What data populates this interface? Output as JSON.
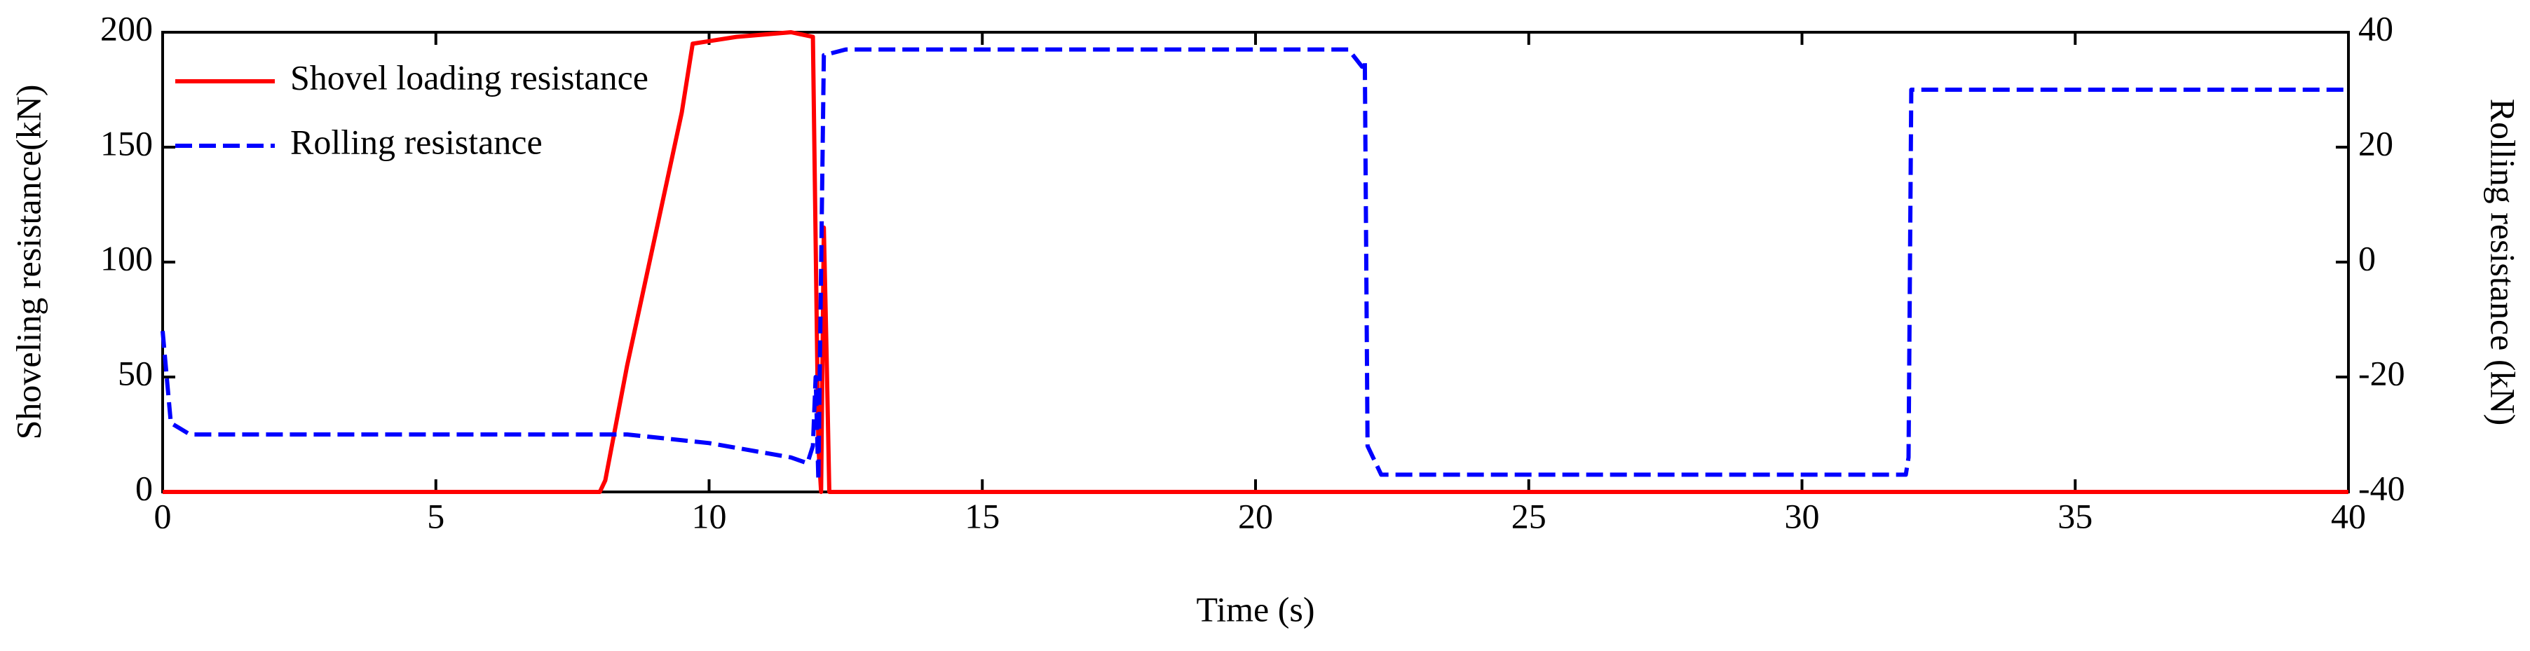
{
  "chart_data": {
    "type": "line",
    "x_label": "Time (s)",
    "y_label": "Shoveling resistance(kN)",
    "y2_label": "Rolling resistance (kN)",
    "xlim": [
      0,
      40
    ],
    "xticks": [
      0,
      5,
      10,
      15,
      20,
      25,
      30,
      35,
      40
    ],
    "ylim": [
      0,
      200
    ],
    "yticks": [
      0,
      50,
      100,
      150,
      200
    ],
    "y2lim": [
      -40,
      40
    ],
    "y2ticks": [
      -40,
      -20,
      0,
      20,
      40
    ],
    "legend": "upper-left",
    "series": [
      {
        "name": "Shovel loading resistance",
        "color": "#ff0000",
        "style": "solid",
        "x": [
          0,
          8,
          8.1,
          8.5,
          9,
          9.5,
          9.7,
          10.5,
          11.5,
          11.9,
          12.0,
          12.05,
          12.1,
          12.15,
          12.2,
          40
        ],
        "values": [
          0,
          0,
          5,
          55,
          110,
          165,
          195,
          198,
          200,
          198,
          20,
          0,
          115,
          60,
          0,
          0
        ]
      },
      {
        "name": "Rolling resistance",
        "color": "#0000ff",
        "style": "dashed",
        "axis": "y2",
        "x": [
          0,
          0.15,
          0.5,
          8.5,
          10,
          11.5,
          11.8,
          11.9,
          11.95,
          12.0,
          12.1,
          12.5,
          21.7,
          21.95,
          22.0,
          22.05,
          22.3,
          31.9,
          31.95,
          32.0,
          32.1,
          32.3,
          40
        ],
        "values": [
          -12,
          -28,
          -30,
          -30,
          -31.5,
          -34,
          -35,
          -32,
          -20,
          -38,
          36,
          37,
          37,
          34,
          35,
          -32,
          -37,
          -37,
          -34,
          30,
          30,
          30,
          30
        ]
      }
    ]
  }
}
